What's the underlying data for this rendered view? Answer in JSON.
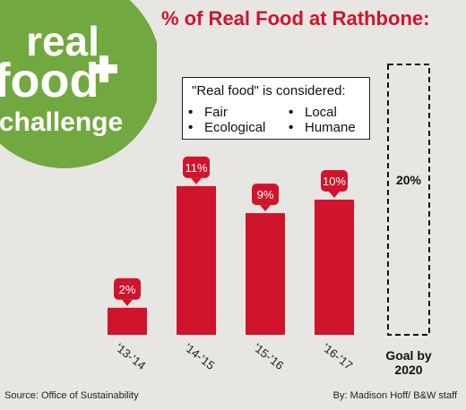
{
  "title": "% of Real Food at Rathbone:",
  "logo": {
    "line1": "real",
    "line2": "food",
    "line3": "challenge",
    "color": "#72a840"
  },
  "legend": {
    "heading": "\"Real food\" is considered:",
    "items": [
      "Fair",
      "Local",
      "Ecological",
      "Humane"
    ]
  },
  "chart_data": {
    "type": "bar",
    "categories": [
      "'13-'14",
      "'14-'15",
      "'15-'16",
      "'16-'17"
    ],
    "values": [
      2,
      11,
      9,
      10
    ],
    "labels": [
      "2%",
      "11%",
      "9%",
      "10%"
    ],
    "unit": "%",
    "goal": {
      "category": "Goal by 2020",
      "value": 20,
      "label": "20%"
    },
    "bar_color": "#d0142c",
    "xlabel": "",
    "ylabel": ""
  },
  "footer": {
    "source": "Source: Office of Sustainability",
    "credit": "By: Madison Hoff/ B&W staff"
  }
}
